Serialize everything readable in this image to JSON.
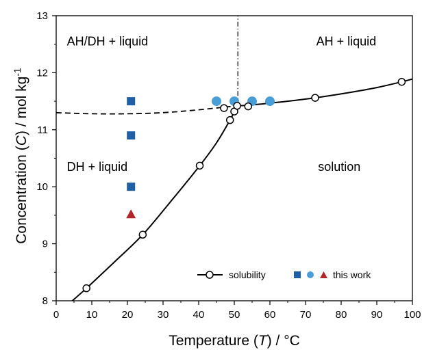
{
  "chart_data": {
    "type": "scatter",
    "xlabel": {
      "pre": "Temperature (",
      "sym": "T",
      "post": ") / °C"
    },
    "ylabel": {
      "pre": "Concentration (",
      "sym": "C",
      "mid": ") / mol kg",
      "sup": "-1"
    },
    "xlim": [
      0,
      100
    ],
    "ylim": [
      8,
      13
    ],
    "xticks": [
      0,
      10,
      20,
      30,
      40,
      50,
      60,
      70,
      80,
      90,
      100
    ],
    "yticks": [
      8,
      9,
      10,
      11,
      12,
      13
    ],
    "grid": false,
    "legend_position": "bottom-right",
    "regions": [
      {
        "label": "AH/DH + liquid",
        "x": 3,
        "y": 12.55
      },
      {
        "label": "AH + liquid",
        "x": 73,
        "y": 12.55
      },
      {
        "label": "DH + liquid",
        "x": 3,
        "y": 10.35
      },
      {
        "label": "solution",
        "x": 73.5,
        "y": 10.35
      }
    ],
    "solubility": {
      "name": "solubility",
      "points": [
        {
          "x": 8.5,
          "y": 8.22
        },
        {
          "x": 24.3,
          "y": 9.16
        },
        {
          "x": 40.3,
          "y": 10.37
        },
        {
          "x": 47.1,
          "y": 11.38
        },
        {
          "x": 48.8,
          "y": 11.17
        },
        {
          "x": 50,
          "y": 11.32
        },
        {
          "x": 50.8,
          "y": 11.42
        },
        {
          "x": 53.9,
          "y": 11.41
        },
        {
          "x": 72.7,
          "y": 11.56
        },
        {
          "x": 97,
          "y": 11.84
        }
      ],
      "curve_low": [
        {
          "x": 3.6,
          "y": 7.95
        },
        {
          "x": 8.5,
          "y": 8.22
        },
        {
          "x": 16,
          "y": 8.66
        },
        {
          "x": 24.3,
          "y": 9.16
        },
        {
          "x": 32,
          "y": 9.73
        },
        {
          "x": 40.3,
          "y": 10.37
        },
        {
          "x": 45,
          "y": 10.77
        },
        {
          "x": 48.8,
          "y": 11.17
        },
        {
          "x": 50,
          "y": 11.32
        },
        {
          "x": 50.9,
          "y": 11.42
        }
      ],
      "curve_high": [
        {
          "x": 50.9,
          "y": 11.42
        },
        {
          "x": 54,
          "y": 11.43
        },
        {
          "x": 62,
          "y": 11.48
        },
        {
          "x": 72.7,
          "y": 11.56
        },
        {
          "x": 82,
          "y": 11.65
        },
        {
          "x": 90,
          "y": 11.74
        },
        {
          "x": 97,
          "y": 11.84
        },
        {
          "x": 100,
          "y": 11.89
        }
      ],
      "color": "#000000"
    },
    "metastable_curve": [
      {
        "x": 0,
        "y": 11.3
      },
      {
        "x": 10,
        "y": 11.28
      },
      {
        "x": 20,
        "y": 11.28
      },
      {
        "x": 30,
        "y": 11.3
      },
      {
        "x": 40,
        "y": 11.35
      },
      {
        "x": 50.9,
        "y": 11.42
      }
    ],
    "vertical_line": {
      "x": 51,
      "y_from": 11.42,
      "y_to": 13
    },
    "this_work": {
      "name": "this work",
      "squares": [
        {
          "x": 21,
          "y": 11.5
        },
        {
          "x": 21,
          "y": 10.9
        },
        {
          "x": 21,
          "y": 10.0
        }
      ],
      "triangles": [
        {
          "x": 21,
          "y": 9.52
        }
      ],
      "circles": [
        {
          "x": 45,
          "y": 11.5
        },
        {
          "x": 50,
          "y": 11.5
        },
        {
          "x": 55,
          "y": 11.5
        },
        {
          "x": 60,
          "y": 11.5
        }
      ],
      "blue": "#1f5fa6",
      "light_blue": "#4a9ed8",
      "red": "#b2252b"
    }
  }
}
